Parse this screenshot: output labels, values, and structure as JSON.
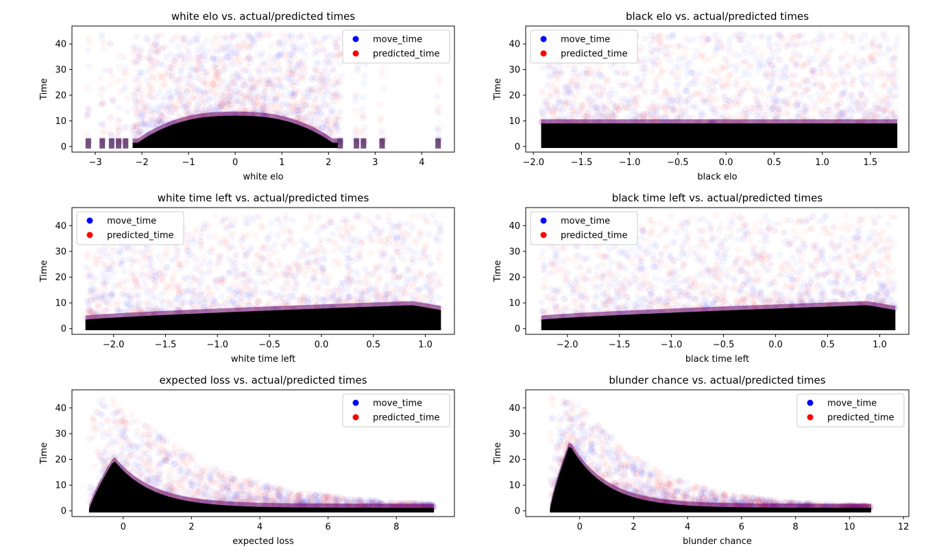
{
  "colors": {
    "move_time": "#0000ff",
    "predicted_time": "#ff0000",
    "dense": "#000000"
  },
  "chart_data": [
    {
      "type": "scatter",
      "title": "white elo vs. actual/predicted times",
      "xlabel": "white elo",
      "ylabel": "Time",
      "xlim": [
        -3.5,
        4.7
      ],
      "ylim": [
        -2.2,
        47
      ],
      "xticks": [
        -3,
        -2,
        -1,
        0,
        1,
        2,
        3,
        4
      ],
      "yticks": [
        0,
        10,
        20,
        30,
        40
      ],
      "legend": "upper right",
      "series": [
        {
          "name": "move_time"
        },
        {
          "name": "predicted_time"
        }
      ],
      "distribution": {
        "kind": "hump",
        "x_min": -2.2,
        "x_max": 2.2,
        "peak": 12,
        "outliers": [
          -3.15,
          -2.85,
          -2.65,
          -2.5,
          -2.35,
          2.25,
          2.6,
          2.75,
          3.15,
          4.35
        ]
      }
    },
    {
      "type": "scatter",
      "title": "black elo vs. actual/predicted times",
      "xlabel": "black elo",
      "ylabel": "Time",
      "xlim": [
        -2.08,
        1.9
      ],
      "ylim": [
        -2.2,
        47
      ],
      "xticks": [
        -2.0,
        -1.5,
        -1.0,
        -0.5,
        0.0,
        0.5,
        1.0,
        1.5
      ],
      "yticks": [
        0,
        10,
        20,
        30,
        40
      ],
      "legend": "upper left",
      "series": [
        {
          "name": "move_time"
        },
        {
          "name": "predicted_time"
        }
      ],
      "distribution": {
        "kind": "flat",
        "x_min": -1.92,
        "x_max": 1.78,
        "level": 9
      }
    },
    {
      "type": "scatter",
      "title": "white time left vs. actual/predicted times",
      "xlabel": "white time left",
      "ylabel": "Time",
      "xlim": [
        -2.4,
        1.28
      ],
      "ylim": [
        -2.2,
        47
      ],
      "xticks": [
        -2.0,
        -1.5,
        -1.0,
        -0.5,
        0.0,
        0.5,
        1.0
      ],
      "yticks": [
        0,
        10,
        20,
        30,
        40
      ],
      "legend": "upper left",
      "series": [
        {
          "name": "move_time"
        },
        {
          "name": "predicted_time"
        }
      ],
      "distribution": {
        "kind": "ramp",
        "x_min": -2.27,
        "x_max": 1.15,
        "start": 3.5,
        "end": 9.5
      }
    },
    {
      "type": "scatter",
      "title": "black time left vs. actual/predicted times",
      "xlabel": "black time left",
      "ylabel": "Time",
      "xlim": [
        -2.4,
        1.28
      ],
      "ylim": [
        -2.2,
        47
      ],
      "xticks": [
        -2.0,
        -1.5,
        -1.0,
        -0.5,
        0.0,
        0.5,
        1.0
      ],
      "yticks": [
        0,
        10,
        20,
        30,
        40
      ],
      "legend": "upper left",
      "series": [
        {
          "name": "move_time"
        },
        {
          "name": "predicted_time"
        }
      ],
      "distribution": {
        "kind": "ramp",
        "x_min": -2.25,
        "x_max": 1.15,
        "start": 3.5,
        "end": 9.5
      }
    },
    {
      "type": "scatter",
      "title": "expected loss vs. actual/predicted times",
      "xlabel": "expected loss",
      "ylabel": "Time",
      "xlim": [
        -1.5,
        9.7
      ],
      "ylim": [
        -2.2,
        47
      ],
      "xticks": [
        0,
        2,
        4,
        6,
        8
      ],
      "yticks": [
        0,
        10,
        20,
        30,
        40
      ],
      "legend": "upper right",
      "series": [
        {
          "name": "move_time"
        },
        {
          "name": "predicted_time"
        }
      ],
      "distribution": {
        "kind": "decay",
        "x_min": -1.0,
        "x_max": 9.1,
        "x_peak": -0.3,
        "peak": 19,
        "decay": 0.9
      }
    },
    {
      "type": "scatter",
      "title": "blunder chance vs. actual/predicted times",
      "xlabel": "blunder chance",
      "ylabel": "Time",
      "xlim": [
        -2.0,
        12.2
      ],
      "ylim": [
        -2.2,
        47
      ],
      "xticks": [
        0,
        2,
        4,
        6,
        8,
        10,
        12
      ],
      "yticks": [
        0,
        10,
        20,
        30,
        40
      ],
      "legend": "upper right",
      "series": [
        {
          "name": "move_time"
        },
        {
          "name": "predicted_time"
        }
      ],
      "distribution": {
        "kind": "decay",
        "x_min": -1.1,
        "x_max": 10.8,
        "x_peak": -0.4,
        "peak": 25,
        "decay": 0.75
      }
    }
  ]
}
